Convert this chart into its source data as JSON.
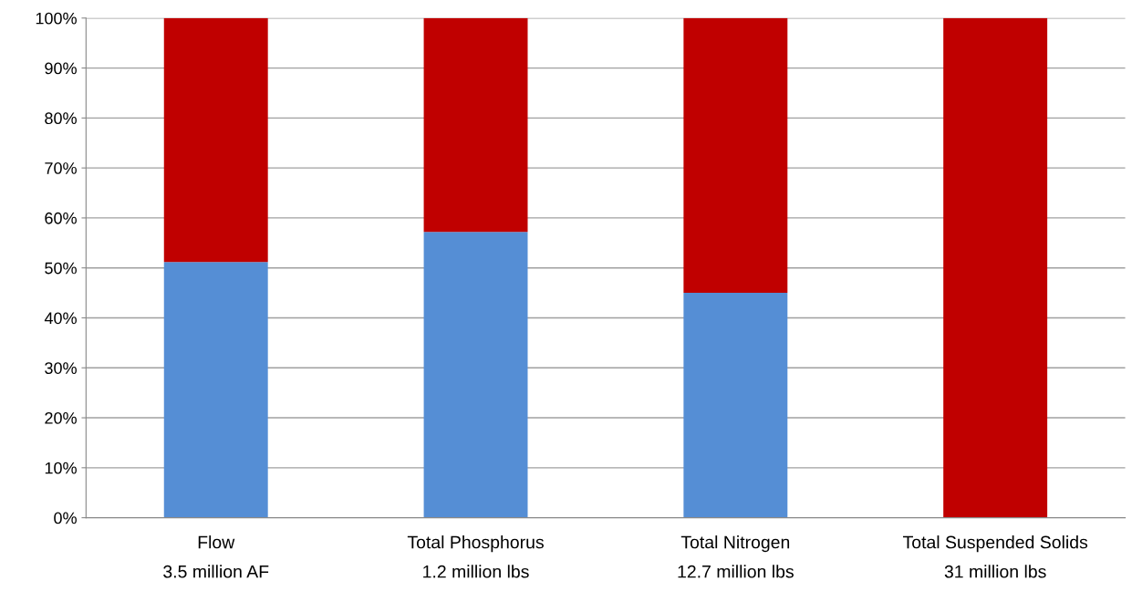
{
  "chart_data": {
    "type": "bar",
    "stacked": true,
    "categories": [
      "Flow\n3.5 million AF",
      "Total Phosphorus\n1.2 million lbs",
      "Total Nitrogen\n12.7 million lbs",
      "Total Suspended Solids\n31 million lbs"
    ],
    "series": [
      {
        "color": "#558ed5",
        "values": [
          51.2,
          57.2,
          45.0,
          0
        ]
      },
      {
        "color": "#c00000",
        "values": [
          48.8,
          42.8,
          55.0,
          100
        ]
      }
    ],
    "ylim": [
      0,
      100
    ],
    "yticks": [
      {
        "value": 0,
        "label": "0%"
      },
      {
        "value": 10,
        "label": "10%"
      },
      {
        "value": 20,
        "label": "20%"
      },
      {
        "value": 30,
        "label": "30%"
      },
      {
        "value": 40,
        "label": "40%"
      },
      {
        "value": 50,
        "label": "50%"
      },
      {
        "value": 60,
        "label": "60%"
      },
      {
        "value": 70,
        "label": "70%"
      },
      {
        "value": 80,
        "label": "80%"
      },
      {
        "value": 90,
        "label": "90%"
      },
      {
        "value": 100,
        "label": "100%"
      }
    ],
    "grid": "y"
  }
}
